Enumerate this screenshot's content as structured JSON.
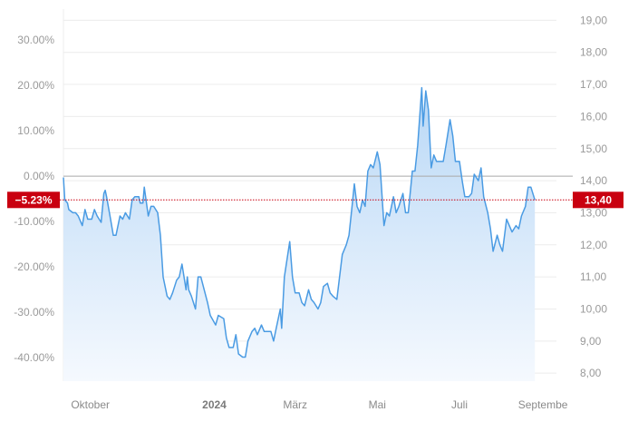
{
  "chart_data": {
    "type": "area",
    "title": "",
    "y_left_ticks": [
      "30.00%",
      "20.00%",
      "10.00%",
      "0.00%",
      "-10.00%",
      "-20.00%",
      "-30.00%",
      "-40.00%"
    ],
    "y_left_values": [
      30,
      20,
      10,
      0,
      -10,
      -20,
      -30,
      -40
    ],
    "y_right_ticks": [
      "19,00",
      "18,00",
      "17,00",
      "16,00",
      "15,00",
      "14,00",
      "13,00",
      "12,00",
      "11,00",
      "10,00",
      "9,00",
      "8,00"
    ],
    "y_right_values": [
      19,
      18,
      17,
      16,
      15,
      14,
      13,
      12,
      11,
      10,
      9,
      8
    ],
    "x_ticks": [
      {
        "label": "Oktober",
        "date": "2023-10-01",
        "bold": false
      },
      {
        "label": "2024",
        "date": "2024-01-01",
        "bold": true
      },
      {
        "label": "März",
        "date": "2024-03-01",
        "bold": false
      },
      {
        "label": "Mai",
        "date": "2024-05-01",
        "bold": false
      },
      {
        "label": "Juli",
        "date": "2024-07-01",
        "bold": false
      },
      {
        "label": "Septembe",
        "date": "2024-09-01",
        "bold": false
      }
    ],
    "xlim": [
      "2023-09-11",
      "2024-09-11"
    ],
    "ylim_price": [
      7.75,
      19.35
    ],
    "reference_price": 14.14,
    "current": {
      "percent_label": "−5.23%",
      "price_label": "13,40",
      "price": 13.4
    },
    "grid": true,
    "colors": {
      "line": "#4a9be3",
      "fill_top": "#b9d8f6",
      "fill_bottom": "#f5f9fe",
      "current": "#c90010",
      "reference": "#a9a9a9",
      "grid": "#ececec"
    },
    "series": [
      {
        "values": [
          [
            "2023-09-11",
            14.1
          ],
          [
            "2023-09-12",
            13.4
          ],
          [
            "2023-09-14",
            13.3
          ],
          [
            "2023-09-15",
            13.1
          ],
          [
            "2023-09-18",
            13.0
          ],
          [
            "2023-09-20",
            13.0
          ],
          [
            "2023-09-22",
            12.9
          ],
          [
            "2023-09-25",
            12.6
          ],
          [
            "2023-09-27",
            13.1
          ],
          [
            "2023-09-29",
            12.8
          ],
          [
            "2023-10-02",
            12.8
          ],
          [
            "2023-10-04",
            13.1
          ],
          [
            "2023-10-06",
            12.9
          ],
          [
            "2023-10-09",
            12.7
          ],
          [
            "2023-10-11",
            13.6
          ],
          [
            "2023-10-12",
            13.7
          ],
          [
            "2023-10-13",
            13.5
          ],
          [
            "2023-10-16",
            12.8
          ],
          [
            "2023-10-18",
            12.3
          ],
          [
            "2023-10-20",
            12.3
          ],
          [
            "2023-10-23",
            12.9
          ],
          [
            "2023-10-25",
            12.8
          ],
          [
            "2023-10-27",
            13.0
          ],
          [
            "2023-10-30",
            12.8
          ],
          [
            "2023-11-01",
            13.4
          ],
          [
            "2023-11-03",
            13.5
          ],
          [
            "2023-11-06",
            13.5
          ],
          [
            "2023-11-07",
            13.3
          ],
          [
            "2023-11-09",
            13.3
          ],
          [
            "2023-11-10",
            13.8
          ],
          [
            "2023-11-13",
            12.9
          ],
          [
            "2023-11-15",
            13.2
          ],
          [
            "2023-11-17",
            13.2
          ],
          [
            "2023-11-20",
            13.0
          ],
          [
            "2023-11-22",
            12.3
          ],
          [
            "2023-11-24",
            11.0
          ],
          [
            "2023-11-27",
            10.4
          ],
          [
            "2023-11-29",
            10.3
          ],
          [
            "2023-12-01",
            10.5
          ],
          [
            "2023-12-04",
            10.9
          ],
          [
            "2023-12-06",
            11.0
          ],
          [
            "2023-12-08",
            11.4
          ],
          [
            "2023-12-11",
            10.6
          ],
          [
            "2023-12-12",
            11.0
          ],
          [
            "2023-12-13",
            10.6
          ],
          [
            "2023-12-15",
            10.4
          ],
          [
            "2023-12-18",
            10.0
          ],
          [
            "2023-12-20",
            11.0
          ],
          [
            "2023-12-22",
            11.0
          ],
          [
            "2023-12-27",
            10.2
          ],
          [
            "2023-12-29",
            9.8
          ],
          [
            "2024-01-02",
            9.5
          ],
          [
            "2024-01-04",
            9.8
          ],
          [
            "2024-01-08",
            9.7
          ],
          [
            "2024-01-10",
            9.1
          ],
          [
            "2024-01-12",
            8.8
          ],
          [
            "2024-01-15",
            8.8
          ],
          [
            "2024-01-17",
            9.2
          ],
          [
            "2024-01-19",
            8.6
          ],
          [
            "2024-01-22",
            8.5
          ],
          [
            "2024-01-24",
            8.5
          ],
          [
            "2024-01-26",
            9.0
          ],
          [
            "2024-01-29",
            9.3
          ],
          [
            "2024-01-31",
            9.4
          ],
          [
            "2024-02-02",
            9.2
          ],
          [
            "2024-02-05",
            9.5
          ],
          [
            "2024-02-07",
            9.3
          ],
          [
            "2024-02-09",
            9.3
          ],
          [
            "2024-02-12",
            9.3
          ],
          [
            "2024-02-14",
            9.0
          ],
          [
            "2024-02-16",
            9.4
          ],
          [
            "2024-02-19",
            10.0
          ],
          [
            "2024-02-20",
            9.4
          ],
          [
            "2024-02-22",
            11.0
          ],
          [
            "2024-02-26",
            12.1
          ],
          [
            "2024-02-28",
            11.0
          ],
          [
            "2024-03-01",
            10.5
          ],
          [
            "2024-03-04",
            10.5
          ],
          [
            "2024-03-06",
            10.2
          ],
          [
            "2024-03-08",
            10.1
          ],
          [
            "2024-03-11",
            10.6
          ],
          [
            "2024-03-13",
            10.3
          ],
          [
            "2024-03-15",
            10.2
          ],
          [
            "2024-03-18",
            10.0
          ],
          [
            "2024-03-20",
            10.2
          ],
          [
            "2024-03-22",
            10.7
          ],
          [
            "2024-03-25",
            10.8
          ],
          [
            "2024-03-27",
            10.5
          ],
          [
            "2024-03-29",
            10.4
          ],
          [
            "2024-04-01",
            10.3
          ],
          [
            "2024-04-03",
            11.0
          ],
          [
            "2024-04-05",
            11.7
          ],
          [
            "2024-04-08",
            12.0
          ],
          [
            "2024-04-10",
            12.3
          ],
          [
            "2024-04-12",
            13.1
          ],
          [
            "2024-04-14",
            13.9
          ],
          [
            "2024-04-16",
            13.2
          ],
          [
            "2024-04-18",
            13.0
          ],
          [
            "2024-04-20",
            13.4
          ],
          [
            "2024-04-22",
            13.2
          ],
          [
            "2024-04-24",
            14.3
          ],
          [
            "2024-04-26",
            14.5
          ],
          [
            "2024-04-28",
            14.4
          ],
          [
            "2024-05-01",
            14.9
          ],
          [
            "2024-05-03",
            14.5
          ],
          [
            "2024-05-06",
            12.6
          ],
          [
            "2024-05-08",
            13.0
          ],
          [
            "2024-05-10",
            12.9
          ],
          [
            "2024-05-13",
            13.5
          ],
          [
            "2024-05-15",
            13.0
          ],
          [
            "2024-05-17",
            13.2
          ],
          [
            "2024-05-20",
            13.6
          ],
          [
            "2024-05-22",
            13.0
          ],
          [
            "2024-05-24",
            13.0
          ],
          [
            "2024-05-27",
            14.3
          ],
          [
            "2024-05-29",
            14.3
          ],
          [
            "2024-05-31",
            15.1
          ],
          [
            "2024-06-03",
            16.9
          ],
          [
            "2024-06-04",
            15.7
          ],
          [
            "2024-06-06",
            16.8
          ],
          [
            "2024-06-08",
            16.2
          ],
          [
            "2024-06-10",
            14.4
          ],
          [
            "2024-06-12",
            14.8
          ],
          [
            "2024-06-14",
            14.6
          ],
          [
            "2024-06-17",
            14.6
          ],
          [
            "2024-06-19",
            14.6
          ],
          [
            "2024-06-21",
            15.1
          ],
          [
            "2024-06-24",
            15.9
          ],
          [
            "2024-06-26",
            15.4
          ],
          [
            "2024-06-28",
            14.6
          ],
          [
            "2024-07-01",
            14.6
          ],
          [
            "2024-07-03",
            14.0
          ],
          [
            "2024-07-05",
            13.5
          ],
          [
            "2024-07-08",
            13.5
          ],
          [
            "2024-07-10",
            13.6
          ],
          [
            "2024-07-12",
            14.2
          ],
          [
            "2024-07-15",
            14.0
          ],
          [
            "2024-07-17",
            14.4
          ],
          [
            "2024-07-19",
            13.5
          ],
          [
            "2024-07-22",
            13.0
          ],
          [
            "2024-07-24",
            12.5
          ],
          [
            "2024-07-26",
            11.8
          ],
          [
            "2024-07-29",
            12.3
          ],
          [
            "2024-07-31",
            12.0
          ],
          [
            "2024-08-02",
            11.8
          ],
          [
            "2024-08-05",
            12.8
          ],
          [
            "2024-08-07",
            12.6
          ],
          [
            "2024-08-09",
            12.4
          ],
          [
            "2024-08-12",
            12.6
          ],
          [
            "2024-08-14",
            12.5
          ],
          [
            "2024-08-16",
            12.9
          ],
          [
            "2024-08-19",
            13.2
          ],
          [
            "2024-08-21",
            13.8
          ],
          [
            "2024-08-23",
            13.8
          ],
          [
            "2024-08-26",
            13.4
          ]
        ]
      }
    ]
  }
}
